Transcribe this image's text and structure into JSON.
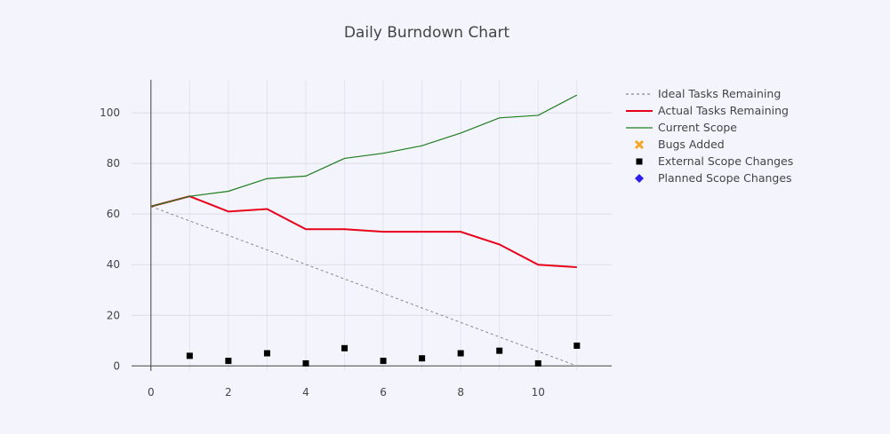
{
  "chart_data": {
    "type": "line",
    "title": "Daily Burndown Chart",
    "xlabel": "",
    "ylabel": "",
    "xlim": [
      -0.5,
      11.9
    ],
    "ylim": [
      -2,
      113
    ],
    "x_ticks": [
      0,
      2,
      4,
      6,
      8,
      10
    ],
    "y_ticks": [
      0,
      20,
      40,
      60,
      80,
      100
    ],
    "grid": true,
    "legend_position": "top-right",
    "series": [
      {
        "name": "Ideal Tasks Remaining",
        "mode": "line",
        "style": "dashed",
        "color": "#888888",
        "x": [
          0,
          11
        ],
        "y": [
          63,
          0
        ]
      },
      {
        "name": "Actual Tasks Remaining",
        "mode": "line",
        "style": "solid",
        "color": "#e8001a",
        "x": [
          0,
          1,
          2,
          3,
          4,
          5,
          6,
          7,
          8,
          9,
          10,
          11
        ],
        "y": [
          63,
          67,
          61,
          62,
          54,
          54,
          53,
          53,
          53,
          48,
          40,
          39
        ]
      },
      {
        "name": "Current Scope",
        "mode": "line",
        "style": "solid",
        "color": "#1e7d1e",
        "x": [
          0,
          1,
          2,
          3,
          4,
          5,
          6,
          7,
          8,
          9,
          10,
          11
        ],
        "y": [
          63,
          67,
          69,
          74,
          75,
          82,
          84,
          87,
          92,
          98,
          99,
          107
        ]
      },
      {
        "name": "Bugs Added",
        "mode": "markers",
        "marker": "x",
        "color": "#f5a623",
        "x": [],
        "y": []
      },
      {
        "name": "External Scope Changes",
        "mode": "markers",
        "marker": "square",
        "color": "#000000",
        "x": [
          1,
          2,
          3,
          4,
          5,
          6,
          7,
          8,
          9,
          10,
          11
        ],
        "y": [
          4,
          2,
          5,
          1,
          7,
          2,
          3,
          5,
          6,
          1,
          8
        ]
      },
      {
        "name": "Planned Scope Changes",
        "mode": "markers",
        "marker": "diamond",
        "color": "#2a1ee8",
        "x": [],
        "y": []
      }
    ]
  }
}
